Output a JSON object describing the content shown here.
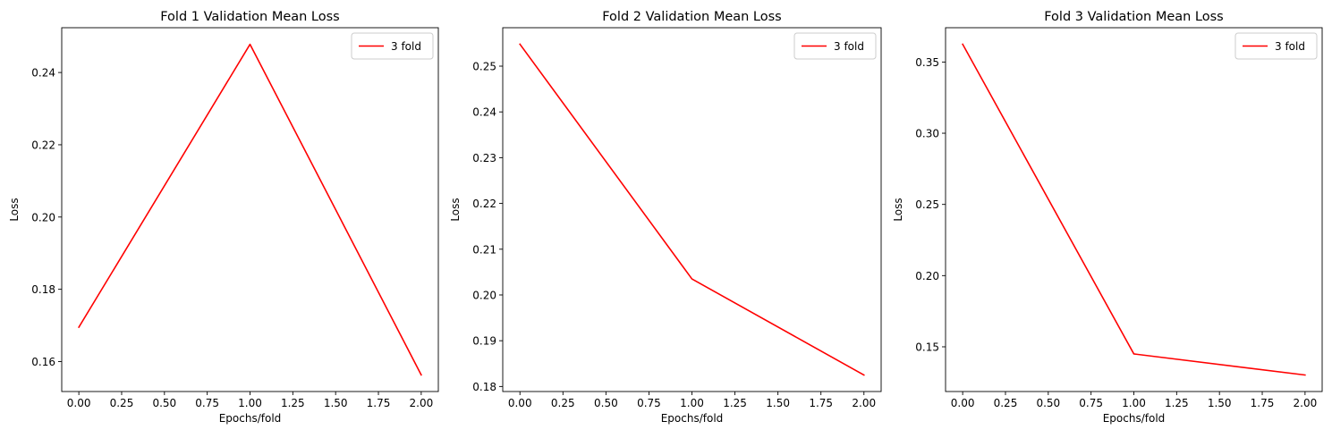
{
  "chart_data": [
    {
      "type": "line",
      "title": "Fold 1 Validation Mean Loss",
      "xlabel": "Epochs/fold",
      "ylabel": "Loss",
      "x": [
        0,
        1,
        2
      ],
      "series": [
        {
          "name": "3 fold",
          "color": "#ff0000",
          "values": [
            0.1695,
            0.2478,
            0.1563
          ]
        }
      ],
      "xlim": [
        -0.1,
        2.1
      ],
      "ylim": [
        0.1517,
        0.2524
      ],
      "xticks": [
        "0.00",
        "0.25",
        "0.50",
        "0.75",
        "1.00",
        "1.25",
        "1.50",
        "1.75",
        "2.00"
      ],
      "yticks": [
        "0.16",
        "0.18",
        "0.20",
        "0.22",
        "0.24"
      ],
      "legend": "top-right",
      "grid": false
    },
    {
      "type": "line",
      "title": "Fold 2 Validation Mean Loss",
      "xlabel": "Epochs/fold",
      "ylabel": "Loss",
      "x": [
        0,
        1,
        2
      ],
      "series": [
        {
          "name": "3 fold",
          "color": "#ff0000",
          "values": [
            0.2548,
            0.2035,
            0.1825
          ]
        }
      ],
      "xlim": [
        -0.1,
        2.1
      ],
      "ylim": [
        0.1789,
        0.2584
      ],
      "xticks": [
        "0.00",
        "0.25",
        "0.50",
        "0.75",
        "1.00",
        "1.25",
        "1.50",
        "1.75",
        "2.00"
      ],
      "yticks": [
        "0.18",
        "0.19",
        "0.20",
        "0.21",
        "0.22",
        "0.23",
        "0.24",
        "0.25"
      ],
      "legend": "top-right",
      "grid": false
    },
    {
      "type": "line",
      "title": "Fold 3 Validation Mean Loss",
      "xlabel": "Epochs/fold",
      "ylabel": "Loss",
      "x": [
        0,
        1,
        2
      ],
      "series": [
        {
          "name": "3 fold",
          "color": "#ff0000",
          "values": [
            0.3625,
            0.145,
            0.1302
          ]
        }
      ],
      "xlim": [
        -0.1,
        2.1
      ],
      "ylim": [
        0.1186,
        0.3741
      ],
      "xticks": [
        "0.00",
        "0.25",
        "0.50",
        "0.75",
        "1.00",
        "1.25",
        "1.50",
        "1.75",
        "2.00"
      ],
      "yticks": [
        "0.15",
        "0.20",
        "0.25",
        "0.30",
        "0.35"
      ],
      "legend": "top-right",
      "grid": false
    }
  ]
}
